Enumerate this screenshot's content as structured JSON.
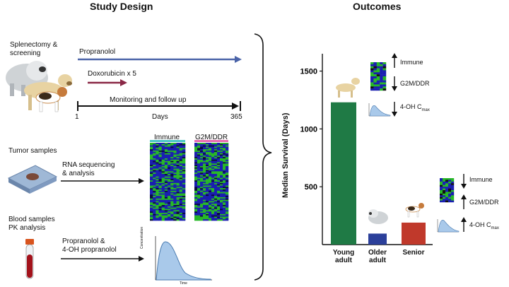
{
  "study_design": {
    "title": "Study Design",
    "splenectomy": "Splenectomy &\nscreening",
    "propranolol_arrow": "Propranolol",
    "doxorubicin_arrow": "Doxorubicin x 5",
    "monitoring": "Monitoring and follow up",
    "timeline_start": "1",
    "timeline_label": "Days",
    "timeline_end": "365",
    "tumor_samples": "Tumor samples",
    "rna_seq": "RNA sequencing\n& analysis",
    "heatmap_col1": "Immune",
    "heatmap_col2": "G2M/DDR",
    "blood_samples": "Blood samples\nPK analysis",
    "pk_drugs": "Propranolol &\n4-OH propranolol",
    "pk_ylabel": "Concentration",
    "pk_xlabel": "Time"
  },
  "outcomes": {
    "title": "Outcomes",
    "young_annotations": {
      "immune": "Immune",
      "g2m": "G2M/DDR",
      "pk": "4-OH C",
      "pk_sub": "max"
    },
    "senior_annotations": {
      "immune": "Immune",
      "g2m": "G2M/DDR",
      "pk": "4-OH C",
      "pk_sub": "max"
    }
  },
  "chart_data": {
    "type": "bar",
    "ylabel": "Median Survival (Days)",
    "ylim": [
      0,
      1650
    ],
    "yticks": [
      500,
      1000,
      1500
    ],
    "categories": [
      "Young\nadult",
      "Older\nadult",
      "Senior"
    ],
    "values": [
      1230,
      95,
      190
    ],
    "colors": [
      "#1f7a45",
      "#2b3f9a",
      "#c0392b"
    ]
  },
  "colors": {
    "propranolol_arrow": "#4a63a8",
    "doxorubicin_arrow": "#8a2846",
    "heat_blue": "#1a1fb0",
    "heat_green": "#27b827",
    "pk_fill": "#a9c9ea"
  }
}
